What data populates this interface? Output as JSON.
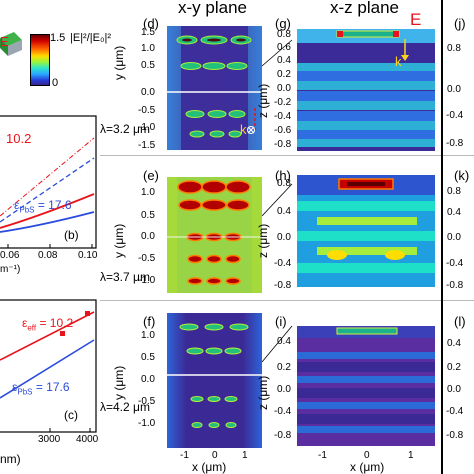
{
  "headers": {
    "xy": "x-y plane",
    "xz": "x-z plane"
  },
  "colorbar": {
    "max": "1.5",
    "min": "0",
    "label": "|E|²/|E₀|²"
  },
  "annotations": {
    "E": "E",
    "k": "k",
    "k2": "k"
  },
  "wavelengths": [
    "λ=3.2 μm",
    "λ=3.7 μm",
    "λ=4.2 μm"
  ],
  "panel_labels": {
    "b": "(b)",
    "c": "(c)",
    "d": "(d)",
    "e": "(e)",
    "f": "(f)",
    "g": "(g)",
    "h": "(h)",
    "i": "(i)",
    "j": "(j)",
    "k": "(k)",
    "l": "(l)"
  },
  "left": {
    "b": {
      "eps_eff": "10.2",
      "eps_pbs_label": "ε",
      "eps_pbs_sub": "PbS",
      "eps_pbs_val": "= 17.6",
      "x_ticks": [
        "0.06",
        "0.08",
        "0.10"
      ],
      "x_frag": "m⁻¹)"
    },
    "c": {
      "eps_eff_label": "ε",
      "eps_eff_sub": "eff",
      "eps_eff_val": "= 10.2",
      "eps_pbs_label": "ε",
      "eps_pbs_sub": "PbS",
      "eps_pbs_val": "= 17.6",
      "x_ticks": [
        "3000",
        "4000"
      ],
      "x_frag": "nm)"
    }
  },
  "xy_axes": {
    "ylabel": "y (μm)",
    "xlabel": "x (μm)",
    "y_ticks": [
      "1.5",
      "1.0",
      "0.5",
      "0.0",
      "-0.5",
      "-1.0",
      "-1.5"
    ],
    "x_ticks": [
      "-1",
      "0",
      "1"
    ]
  },
  "xz_axes": {
    "ylabel": "z (μm)",
    "xlabel": "x (μm)",
    "y_ticks": [
      "0.8",
      "0.6",
      "0.4",
      "0.2",
      "0.0",
      "-0.2",
      "-0.4",
      "-0.6",
      "-0.8"
    ],
    "x_ticks": [
      "-1",
      "0",
      "1"
    ]
  },
  "right_ticks": [
    "0.8",
    "0.6",
    "0.4",
    "0.2",
    "0.0",
    "-0.2",
    "-0.4",
    "-0.6",
    "-0.8"
  ],
  "colors": {
    "red": "#e8141b",
    "blue": "#2a4bdc",
    "field_low": "#3a2a9e",
    "field_mid": "#2d6bd8",
    "field_hot": "#8b0000"
  }
}
